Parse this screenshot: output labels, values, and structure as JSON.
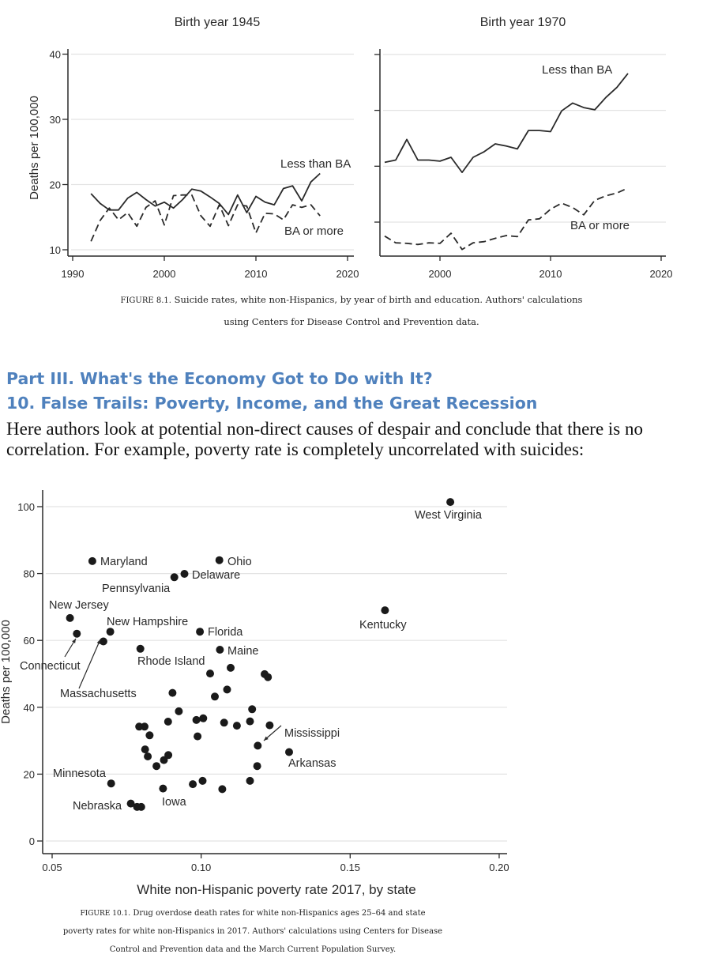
{
  "figure_8_1": {
    "caption_label": "FIGURE 8.1.",
    "caption_line1": "Suicide rates, white non-Hispanics, by year of birth and education. Authors' calculations",
    "caption_line2": "using Centers for Disease Control and Prevention data."
  },
  "headings": {
    "part": "Part III. What's the Economy Got to Do with It?",
    "chapter": "10. False Trails: Poverty, Income, and the Great Recession"
  },
  "paragraph": "Here authors look at potential non-direct causes of despair and conclude that there is no correlation. For example, poverty rate is completely uncorrelated with suicides:",
  "figure_10_1": {
    "caption_label": "FIGURE 10.1.",
    "caption_line1": "Drug overdose death rates for white non-Hispanics ages 25–64 and state",
    "caption_line2": "poverty rates for white non-Hispanics in 2017. Authors' calculations using Centers for Disease",
    "caption_line3": "Control and Prevention data and the March Current Population Survey."
  },
  "colors": {
    "heading": "#4f81bd",
    "grid": "#e3e3e3",
    "ink": "#2a2a2a"
  },
  "chart_data": [
    {
      "type": "line",
      "title": "Birth year 1945",
      "xlabel": "",
      "ylabel": "Deaths per 100,000",
      "xlim": [
        1990,
        2020
      ],
      "ylim": [
        10,
        40
      ],
      "xticks": [
        "1990",
        "2000",
        "2010",
        "2020"
      ],
      "yticks": [
        "10",
        "20",
        "30",
        "40"
      ],
      "grid": true,
      "x": [
        1992,
        1993,
        1994,
        1995,
        1996,
        1997,
        1998,
        1999,
        2000,
        2001,
        2002,
        2003,
        2004,
        2005,
        2006,
        2007,
        2008,
        2009,
        2010,
        2011,
        2012,
        2013,
        2014,
        2015,
        2016,
        2017
      ],
      "series": [
        {
          "name": "Less than BA",
          "style": "solid",
          "values": [
            18.6,
            17.1,
            16.1,
            16.1,
            17.9,
            18.8,
            17.7,
            16.7,
            17.3,
            16.4,
            17.7,
            19.3,
            19.0,
            18.1,
            17.1,
            15.4,
            18.4,
            15.7,
            18.2,
            17.3,
            16.9,
            19.4,
            19.8,
            17.5,
            20.4,
            21.7
          ]
        },
        {
          "name": "BA or more",
          "style": "dashed",
          "values": [
            11.3,
            14.5,
            16.4,
            14.6,
            15.7,
            13.6,
            16.5,
            17.5,
            13.8,
            18.3,
            18.4,
            18.4,
            15.2,
            13.6,
            16.9,
            13.7,
            16.9,
            16.7,
            12.6,
            15.6,
            15.5,
            14.6,
            16.9,
            16.5,
            16.9,
            15.2
          ]
        }
      ]
    },
    {
      "type": "line",
      "title": "Birth year 1970",
      "xlabel": "",
      "ylabel": "",
      "xlim": [
        1993,
        2020
      ],
      "ylim": [
        4,
        40
      ],
      "xticks": [
        "2000",
        "2010",
        "2020"
      ],
      "yticks_unlabeled": [
        10,
        20,
        30,
        40
      ],
      "grid": true,
      "x": [
        1995,
        1996,
        1997,
        1998,
        1999,
        2000,
        2001,
        2002,
        2003,
        2004,
        2005,
        2006,
        2007,
        2008,
        2009,
        2010,
        2011,
        2012,
        2013,
        2014,
        2015,
        2016,
        2017
      ],
      "series": [
        {
          "name": "Less than BA",
          "style": "solid",
          "values": [
            20.7,
            21.1,
            24.8,
            21.1,
            21.1,
            20.9,
            21.6,
            18.9,
            21.6,
            22.6,
            24.0,
            23.6,
            23.1,
            26.4,
            26.4,
            26.2,
            29.9,
            31.3,
            30.5,
            30.1,
            32.3,
            34.1,
            36.6
          ]
        },
        {
          "name": "BA or more",
          "style": "dashed",
          "values": [
            7.5,
            6.3,
            6.2,
            6.0,
            6.3,
            6.2,
            8.0,
            5.1,
            6.3,
            6.5,
            7.1,
            7.6,
            7.4,
            10.4,
            10.6,
            12.3,
            13.4,
            12.6,
            11.3,
            13.9,
            14.7,
            15.2,
            16.1
          ]
        }
      ]
    },
    {
      "type": "scatter",
      "title": "",
      "xlabel": "White non-Hispanic poverty rate 2017, by state",
      "ylabel": "Deaths per 100,000",
      "xlim": [
        0.05,
        0.2
      ],
      "ylim": [
        0,
        100
      ],
      "xticks": [
        "0.05",
        "0.10",
        "0.15",
        "0.20"
      ],
      "yticks": [
        "0",
        "20",
        "40",
        "60",
        "80",
        "100"
      ],
      "grid": true,
      "points": [
        {
          "x": 0.1836,
          "y": 101.4,
          "label": "West Virginia"
        },
        {
          "x": 0.0635,
          "y": 83.7,
          "label": "Maryland"
        },
        {
          "x": 0.1061,
          "y": 84.0,
          "label": "Ohio"
        },
        {
          "x": 0.0944,
          "y": 79.9,
          "label": "Delaware"
        },
        {
          "x": 0.091,
          "y": 78.9,
          "label": "Pennsylvania"
        },
        {
          "x": 0.1617,
          "y": 69.0,
          "label": "Kentucky"
        },
        {
          "x": 0.056,
          "y": 66.7,
          "label": "New Jersey"
        },
        {
          "x": 0.0583,
          "y": 62.0,
          "label": "Connecticut"
        },
        {
          "x": 0.0695,
          "y": 62.6,
          "label": "New Hampshire"
        },
        {
          "x": 0.0672,
          "y": 59.7,
          "label": "Massachusetts"
        },
        {
          "x": 0.0996,
          "y": 62.6,
          "label": "Florida"
        },
        {
          "x": 0.0796,
          "y": 57.5,
          "label": "Rhode Island"
        },
        {
          "x": 0.1063,
          "y": 57.2,
          "label": "Maine"
        },
        {
          "x": 0.103,
          "y": 50.1
        },
        {
          "x": 0.1099,
          "y": 51.8
        },
        {
          "x": 0.1213,
          "y": 49.9
        },
        {
          "x": 0.1224,
          "y": 49.0
        },
        {
          "x": 0.0904,
          "y": 44.3
        },
        {
          "x": 0.1087,
          "y": 45.3
        },
        {
          "x": 0.1046,
          "y": 43.2
        },
        {
          "x": 0.1171,
          "y": 39.4
        },
        {
          "x": 0.0925,
          "y": 38.8
        },
        {
          "x": 0.0889,
          "y": 35.7
        },
        {
          "x": 0.0984,
          "y": 36.2
        },
        {
          "x": 0.1007,
          "y": 36.7
        },
        {
          "x": 0.1077,
          "y": 35.4
        },
        {
          "x": 0.112,
          "y": 34.5
        },
        {
          "x": 0.1164,
          "y": 35.8
        },
        {
          "x": 0.123,
          "y": 34.6
        },
        {
          "x": 0.0792,
          "y": 34.2
        },
        {
          "x": 0.081,
          "y": 34.2
        },
        {
          "x": 0.0827,
          "y": 31.6
        },
        {
          "x": 0.0988,
          "y": 31.3
        },
        {
          "x": 0.119,
          "y": 28.5,
          "label": "Mississippi"
        },
        {
          "x": 0.1295,
          "y": 26.6,
          "label": "Arkansas"
        },
        {
          "x": 0.0812,
          "y": 27.4
        },
        {
          "x": 0.0821,
          "y": 25.3
        },
        {
          "x": 0.089,
          "y": 25.7
        },
        {
          "x": 0.0875,
          "y": 24.2
        },
        {
          "x": 0.085,
          "y": 22.4
        },
        {
          "x": 0.1188,
          "y": 22.4
        },
        {
          "x": 0.0698,
          "y": 17.2,
          "label": "Minnesota"
        },
        {
          "x": 0.0972,
          "y": 17.0
        },
        {
          "x": 0.1005,
          "y": 18.0
        },
        {
          "x": 0.1164,
          "y": 18.0
        },
        {
          "x": 0.0872,
          "y": 15.7,
          "label": "Iowa"
        },
        {
          "x": 0.1071,
          "y": 15.5
        },
        {
          "x": 0.0764,
          "y": 11.2,
          "label": "Nebraska"
        },
        {
          "x": 0.0785,
          "y": 10.2
        },
        {
          "x": 0.0799,
          "y": 10.2
        }
      ]
    }
  ]
}
